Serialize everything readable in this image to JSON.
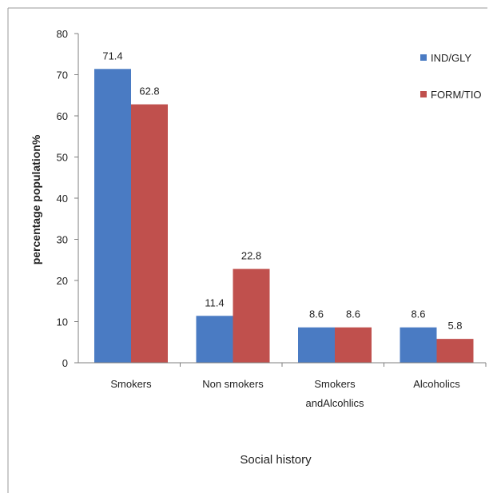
{
  "chart_data": {
    "type": "bar",
    "title": "",
    "xlabel": "Social history",
    "ylabel": "percentage population%",
    "categories": [
      "Smokers",
      "Non smokers",
      "Smokers andAlcohlics",
      "Alcoholics"
    ],
    "category_lines": [
      [
        "Smokers"
      ],
      [
        "Non smokers"
      ],
      [
        "Smokers",
        "andAlcohlics"
      ],
      [
        "Alcoholics"
      ]
    ],
    "series": [
      {
        "name": "IND/GLY",
        "values": [
          71.4,
          11.4,
          8.6,
          8.6
        ],
        "labels": [
          "71.4",
          "11.4",
          "8.6",
          "8.6"
        ],
        "color": "#4a7bc3"
      },
      {
        "name": "FORM/TIO",
        "values": [
          62.8,
          22.8,
          8.6,
          5.8
        ],
        "labels": [
          "62.8",
          "22.8",
          "8.6",
          "5.8"
        ],
        "color": "#c0504d"
      }
    ],
    "yticks": [
      "0",
      "10",
      "20",
      "30",
      "40",
      "50",
      "60",
      "70",
      "80"
    ],
    "ylim": [
      0,
      80
    ],
    "grid": false,
    "legend_position": "top-right"
  }
}
